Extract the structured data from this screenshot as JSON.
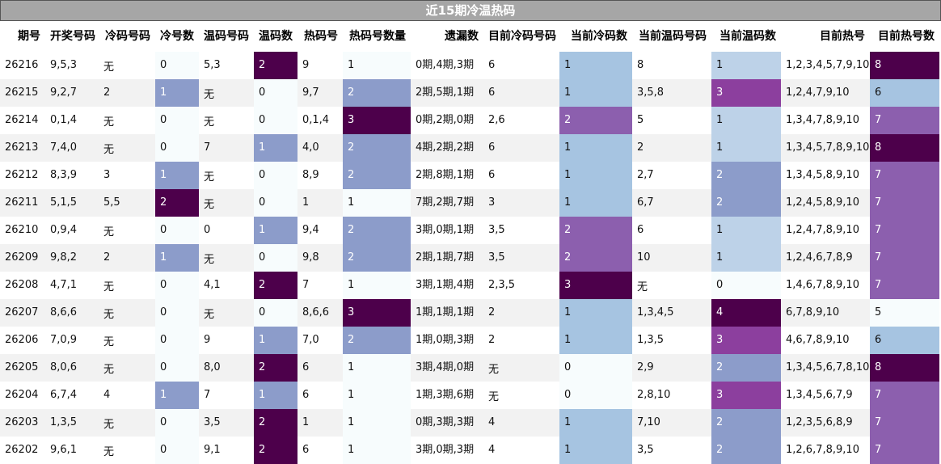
{
  "title": "近15期冷温热码",
  "colors": {
    "lightest": "#f7fcfd",
    "light_blue": "#a6c4e1",
    "pale_blue": "#bdd2e8",
    "periwinkle": "#8c9cca",
    "purple": "#8c5fae",
    "magenta": "#8c3f9e",
    "dark_purple": "#4d004b",
    "stripe": "#f2f2f2"
  },
  "chart_data": {
    "type": "table",
    "title": "近15期冷温热码",
    "columns": [
      "期号",
      "开奖号码",
      "冷码号码",
      "冷号数",
      "温码号码",
      "温码数",
      "热码号",
      "热码号数量",
      "遗漏数",
      "目前冷码号码",
      "当前冷码数",
      "当前温码号码",
      "当前温码数",
      "目前热号",
      "目前热号数"
    ],
    "rows": [
      [
        "26216",
        "9,5,3",
        "无",
        "0",
        "5,3",
        "2",
        "9",
        "1",
        "0期,4期,3期",
        "6",
        "1",
        "8",
        "1",
        "1,2,3,4,5,7,9,10",
        "8"
      ],
      [
        "26215",
        "9,2,7",
        "2",
        "1",
        "无",
        "0",
        "9,7",
        "2",
        "2期,5期,1期",
        "6",
        "1",
        "3,5,8",
        "3",
        "1,2,4,7,9,10",
        "6"
      ],
      [
        "26214",
        "0,1,4",
        "无",
        "0",
        "无",
        "0",
        "0,1,4",
        "3",
        "0期,2期,0期",
        "2,6",
        "2",
        "5",
        "1",
        "1,3,4,7,8,9,10",
        "7"
      ],
      [
        "26213",
        "7,4,0",
        "无",
        "0",
        "7",
        "1",
        "4,0",
        "2",
        "4期,2期,2期",
        "6",
        "1",
        "2",
        "1",
        "1,3,4,5,7,8,9,10",
        "8"
      ],
      [
        "26212",
        "8,3,9",
        "3",
        "1",
        "无",
        "0",
        "8,9",
        "2",
        "2期,8期,1期",
        "6",
        "1",
        "2,7",
        "2",
        "1,3,4,5,8,9,10",
        "7"
      ],
      [
        "26211",
        "5,1,5",
        "5,5",
        "2",
        "无",
        "0",
        "1",
        "1",
        "7期,2期,7期",
        "3",
        "1",
        "6,7",
        "2",
        "1,2,4,5,8,9,10",
        "7"
      ],
      [
        "26210",
        "0,9,4",
        "无",
        "0",
        "0",
        "1",
        "9,4",
        "2",
        "3期,0期,1期",
        "3,5",
        "2",
        "6",
        "1",
        "1,2,4,7,8,9,10",
        "7"
      ],
      [
        "26209",
        "9,8,2",
        "2",
        "1",
        "无",
        "0",
        "9,8",
        "2",
        "2期,1期,7期",
        "3,5",
        "2",
        "10",
        "1",
        "1,2,4,6,7,8,9",
        "7"
      ],
      [
        "26208",
        "4,7,1",
        "无",
        "0",
        "4,1",
        "2",
        "7",
        "1",
        "3期,1期,4期",
        "2,3,5",
        "3",
        "无",
        "0",
        "1,4,6,7,8,9,10",
        "7"
      ],
      [
        "26207",
        "8,6,6",
        "无",
        "0",
        "无",
        "0",
        "8,6,6",
        "3",
        "1期,1期,1期",
        "2",
        "1",
        "1,3,4,5",
        "4",
        "6,7,8,9,10",
        "5"
      ],
      [
        "26206",
        "7,0,9",
        "无",
        "0",
        "9",
        "1",
        "7,0",
        "2",
        "1期,0期,3期",
        "2",
        "1",
        "1,3,5",
        "3",
        "4,6,7,8,9,10",
        "6"
      ],
      [
        "26205",
        "8,0,6",
        "无",
        "0",
        "8,0",
        "2",
        "6",
        "1",
        "3期,4期,0期",
        "无",
        "0",
        "2,9",
        "2",
        "1,3,4,5,6,7,8,10",
        "8"
      ],
      [
        "26204",
        "6,7,4",
        "4",
        "1",
        "7",
        "1",
        "6",
        "1",
        "1期,3期,6期",
        "无",
        "0",
        "2,8,10",
        "3",
        "1,3,4,5,6,7,9",
        "7"
      ],
      [
        "26203",
        "1,3,5",
        "无",
        "0",
        "3,5",
        "2",
        "1",
        "1",
        "0期,3期,3期",
        "4",
        "1",
        "7,10",
        "2",
        "1,2,3,5,6,8,9",
        "7"
      ],
      [
        "26202",
        "9,6,1",
        "无",
        "0",
        "9,1",
        "2",
        "6",
        "1",
        "3期,0期,3期",
        "4",
        "1",
        "3,5",
        "2",
        "1,2,6,7,8,9,10",
        "7"
      ]
    ]
  }
}
